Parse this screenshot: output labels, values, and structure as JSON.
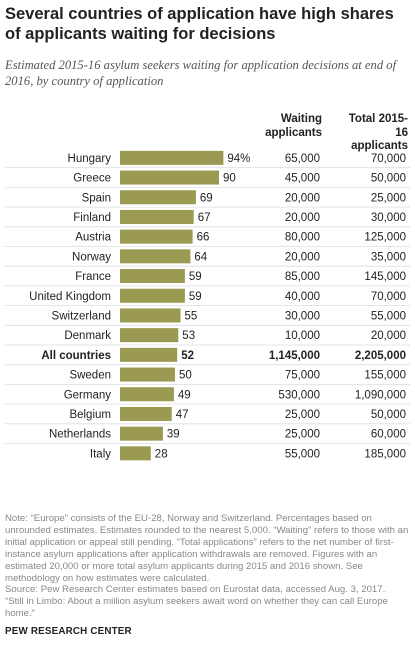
{
  "header": {
    "title": "Several countries of application have high shares of applicants waiting for decisions",
    "subtitle": "Estimated 2015-16 asylum seekers waiting for application decisions at end of 2016, by country of application"
  },
  "columns": {
    "waiting": "Waiting applicants",
    "total": "Total 2015-16 applicants"
  },
  "chart_data": {
    "type": "bar",
    "orientation": "horizontal",
    "xlim": [
      0,
      100
    ],
    "bar_color": "#9a9a52",
    "grid": false,
    "categories": [
      "Hungary",
      "Greece",
      "Spain",
      "Finland",
      "Austria",
      "Norway",
      "France",
      "United Kingdom",
      "Switzerland",
      "Denmark",
      "All countries",
      "Sweden",
      "Germany",
      "Belgium",
      "Netherlands",
      "Italy"
    ],
    "values": [
      94,
      90,
      69,
      67,
      66,
      64,
      59,
      59,
      55,
      53,
      52,
      50,
      49,
      47,
      39,
      28
    ],
    "value_labels": [
      "94%",
      "90",
      "69",
      "67",
      "66",
      "64",
      "59",
      "59",
      "55",
      "53",
      "52",
      "50",
      "49",
      "47",
      "39",
      "28"
    ],
    "waiting_applicants": [
      "65,000",
      "45,000",
      "20,000",
      "20,000",
      "80,000",
      "20,000",
      "85,000",
      "40,000",
      "30,000",
      "10,000",
      "1,145,000",
      "75,000",
      "530,000",
      "25,000",
      "25,000",
      "55,000"
    ],
    "total_applicants": [
      "70,000",
      "50,000",
      "25,000",
      "30,000",
      "125,000",
      "35,000",
      "145,000",
      "70,000",
      "55,000",
      "20,000",
      "2,205,000",
      "155,000",
      "1,090,000",
      "50,000",
      "60,000",
      "185,000"
    ],
    "highlight_index": 10
  },
  "notes": {
    "note": "Note: “Europe” consists of the EU-28, Norway and Switzerland. Percentages based on unrounded estimates. Estimates rounded to the nearest 5,000. “Waiting” refers to those with an initial application or appeal still pending. “Total applications” refers to the net number of first-instance asylum applications after application withdrawals are removed. Figures with an estimated 20,000 or more total asylum applicants during 2015 and 2016 shown. See methodology on how estimates were calculated.",
    "source": "Source: Pew Research Center estimates based on Eurostat data, accessed Aug. 3, 2017.",
    "report": "“Still in Limbo: About a million asylum seekers await word on whether they can call Europe home.”"
  },
  "footer": {
    "brand": "PEW RESEARCH CENTER"
  }
}
